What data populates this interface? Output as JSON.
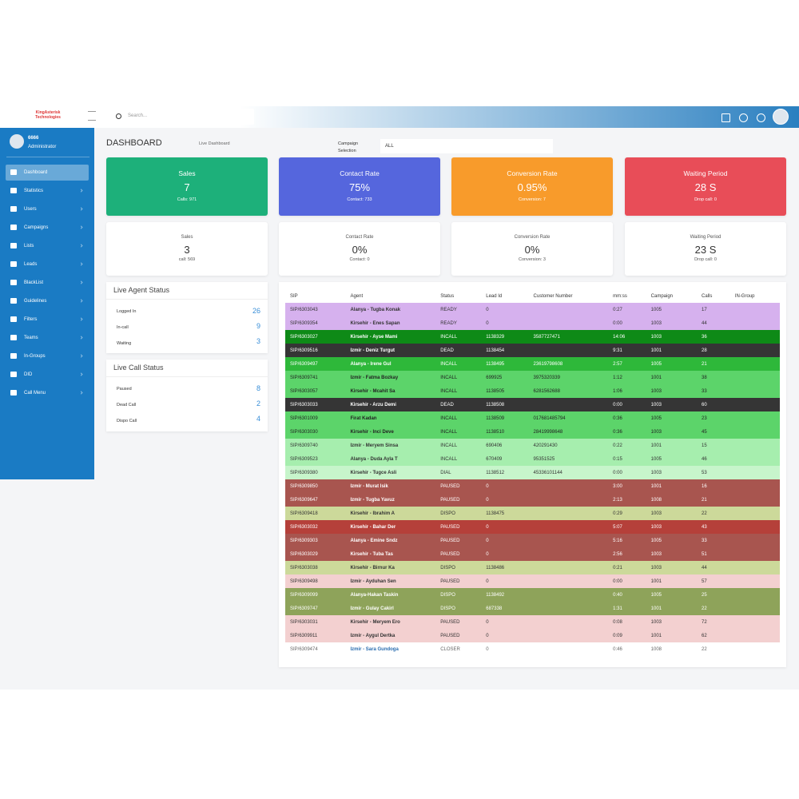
{
  "header": {
    "logo": "KingAsterisk Technologies",
    "search_placeholder": "Search..."
  },
  "user": {
    "id": "6666",
    "role": "Administrator"
  },
  "menu": [
    "Dashboard",
    "Statistics",
    "Users",
    "Campaigns",
    "Lists",
    "Leads",
    "BlackList",
    "Guidelines",
    "Filters",
    "Teams",
    "In-Groups",
    "DID",
    "Call Menu"
  ],
  "page": {
    "title": "DASHBOARD",
    "breadcrumb": "Live Dashboard",
    "campaign_label": "Campaign Selection",
    "campaign_value": "ALL"
  },
  "cards_top": [
    {
      "title": "Sales",
      "value": "7",
      "sub": "Calls: 971",
      "color": "#1db07a"
    },
    {
      "title": "Contact Rate",
      "value": "75%",
      "sub": "Contact: 733",
      "color": "#5566dd"
    },
    {
      "title": "Conversion Rate",
      "value": "0.95%",
      "sub": "Conversion: 7",
      "color": "#f89b2b"
    },
    {
      "title": "Waiting Period",
      "value": "28 S",
      "sub": "Drop call: 0",
      "color": "#e84d58"
    }
  ],
  "cards_bottom": [
    {
      "title": "Sales",
      "value": "3",
      "sub": "call: 569"
    },
    {
      "title": "Contact Rate",
      "value": "0%",
      "sub": "Contact: 0"
    },
    {
      "title": "Conversion Rate",
      "value": "0%",
      "sub": "Conversion: 3"
    },
    {
      "title": "Waiting Period",
      "value": "23 S",
      "sub": "Drop call: 0"
    }
  ],
  "agent_status": {
    "title": "Live Agent Status",
    "rows": [
      [
        "Logged In",
        "26"
      ],
      [
        "In-call",
        "9"
      ],
      [
        "Waiting",
        "3"
      ]
    ]
  },
  "call_status": {
    "title": "Live Call Status",
    "rows": [
      [
        "Paused",
        "8"
      ],
      [
        "Dead Call",
        "2"
      ],
      [
        "Dispo Call",
        "4"
      ]
    ]
  },
  "table": {
    "headers": [
      "SIP",
      "Agent",
      "Status",
      "Lead Id",
      "Customer Number",
      "mm:ss",
      "Campaign",
      "Calls",
      "IN-Group"
    ],
    "rows": [
      {
        "bg": "#d6b1ee",
        "fg": "#333",
        "cells": [
          "SIP/6303043",
          "Alanya - Tugba Konak",
          "READY",
          "0",
          null,
          "0:27",
          "1005",
          "17"
        ]
      },
      {
        "bg": "#d6b1ee",
        "fg": "#333",
        "cells": [
          "SIP/6309354",
          "Kirsehir - Enes Sapan",
          "READY",
          "0",
          null,
          "0:00",
          "1003",
          "44"
        ]
      },
      {
        "bg": "#0e8a17",
        "fg": "#fff",
        "cells": [
          "SIP/6303027",
          "Kirsehir - Ayse Mami",
          "INCALL",
          "1138329",
          "3587727471",
          "14:06",
          "1003",
          "36"
        ]
      },
      {
        "bg": "#353535",
        "fg": "#fff",
        "cells": [
          "SIP/6309516",
          "Izmir - Deniz Turgut",
          "DEAD",
          "1138454",
          null,
          "9:31",
          "1001",
          "28"
        ]
      },
      {
        "bg": "#2eb83a",
        "fg": "#fff",
        "cells": [
          "SIP/6309497",
          "Alanya - Irene Gul",
          "INCALL",
          "1138495",
          "23619798608",
          "2:57",
          "1005",
          "21"
        ]
      },
      {
        "bg": "#5cd46a",
        "fg": "#222",
        "cells": [
          "SIP/6309741",
          "Izmir - Fatma Bozkay",
          "INCALL",
          "699925",
          "3975320339",
          "1:12",
          "1001",
          "38"
        ]
      },
      {
        "bg": "#5cd46a",
        "fg": "#222",
        "cells": [
          "SIP/6303057",
          "Kirsehir - Mcahit Sa",
          "INCALL",
          "1138505",
          "6281562688",
          "1:06",
          "1003",
          "33"
        ]
      },
      {
        "bg": "#353535",
        "fg": "#fff",
        "cells": [
          "SIP/6303033",
          "Kirsehir - Arzu Demi",
          "DEAD",
          "1138508",
          null,
          "0:00",
          "1003",
          "60"
        ]
      },
      {
        "bg": "#5cd46a",
        "fg": "#222",
        "cells": [
          "SIP/6301009",
          "Firat Kadan",
          "INCALL",
          "1138509",
          "017681485794",
          "0:36",
          "1005",
          "23"
        ]
      },
      {
        "bg": "#5cd46a",
        "fg": "#222",
        "cells": [
          "SIP/6303030",
          "Kirsehir - Inci Deve",
          "INCALL",
          "1138510",
          "28419998648",
          "0:36",
          "1003",
          "45"
        ]
      },
      {
        "bg": "#a6eeae",
        "fg": "#333",
        "cells": [
          "SIP/6309740",
          "Izmir - Meryem Sinsa",
          "INCALL",
          "690406",
          "420291430",
          "0:22",
          "1001",
          "15"
        ]
      },
      {
        "bg": "#a6eeae",
        "fg": "#333",
        "cells": [
          "SIP/6309523",
          "Alanya - Duda Ayla T",
          "INCALL",
          "670409",
          "95351525",
          "0:15",
          "1005",
          "46"
        ]
      },
      {
        "bg": "#c7f5cb",
        "fg": "#333",
        "cells": [
          "SIP/6309380",
          "Kirsehir - Tugce Asli",
          "DIAL",
          "1138512",
          "45336101144",
          "0:00",
          "1003",
          "53"
        ]
      },
      {
        "bg": "#a8554f",
        "fg": "#fff",
        "cells": [
          "SIP/6309850",
          "Izmir - Murat Isik",
          "PAUSED",
          "0",
          null,
          "3:00",
          "1001",
          "16"
        ]
      },
      {
        "bg": "#a8554f",
        "fg": "#fff",
        "cells": [
          "SIP/6309647",
          "Izmir - Tugba Yavuz",
          "PAUSED",
          "0",
          null,
          "2:13",
          "1008",
          "21"
        ]
      },
      {
        "bg": "#ccd99a",
        "fg": "#333",
        "cells": [
          "SIP/6309418",
          "Kirsehir - Ibrahim A",
          "DISPO",
          "1138475",
          null,
          "0:29",
          "1003",
          "22"
        ]
      },
      {
        "bg": "#b5403a",
        "fg": "#fff",
        "cells": [
          "SIP/6303032",
          "Kirsehir - Bahar Der",
          "PAUSED",
          "0",
          null,
          "5:07",
          "1003",
          "43"
        ]
      },
      {
        "bg": "#a8554f",
        "fg": "#fff",
        "cells": [
          "SIP/6309303",
          "Alanya - Emine Sndz",
          "PAUSED",
          "0",
          null,
          "5:16",
          "1005",
          "33"
        ]
      },
      {
        "bg": "#a8554f",
        "fg": "#fff",
        "cells": [
          "SIP/6303029",
          "Kirsehir - Tuba Tas",
          "PAUSED",
          "0",
          null,
          "2:56",
          "1003",
          "51"
        ]
      },
      {
        "bg": "#ccd99a",
        "fg": "#333",
        "cells": [
          "SIP/6303038",
          "Kirsehir - Birnur Ka",
          "DISPO",
          "1138486",
          null,
          "0:21",
          "1003",
          "44"
        ]
      },
      {
        "bg": "#f3d0d0",
        "fg": "#333",
        "cells": [
          "SIP/6309498",
          "Izmir - Ayduhan Sen",
          "PAUSED",
          "0",
          null,
          "0:00",
          "1001",
          "57"
        ]
      },
      {
        "bg": "#8ea35a",
        "fg": "#fff",
        "cells": [
          "SIP/6309099",
          "Alanya-Hakan Taskin",
          "DISPO",
          "1138492",
          null,
          "0:40",
          "1005",
          "25"
        ]
      },
      {
        "bg": "#8ea35a",
        "fg": "#fff",
        "cells": [
          "SIP/6309747",
          "Izmir - Gulay Cakirl",
          "DISPO",
          "687338",
          null,
          "1:31",
          "1001",
          "22"
        ]
      },
      {
        "bg": "#f3d0d0",
        "fg": "#333",
        "cells": [
          "SIP/6303031",
          "Kirsehir - Meryem Ero",
          "PAUSED",
          "0",
          null,
          "0:08",
          "1003",
          "72"
        ]
      },
      {
        "bg": "#f3d0d0",
        "fg": "#333",
        "cells": [
          "SIP/6309911",
          "Izmir - Aygul Dertka",
          "PAUSED",
          "0",
          null,
          "0:09",
          "1001",
          "62"
        ]
      },
      {
        "bg": "#ffffff",
        "fg": "#666",
        "cells": [
          "SIP/6309474",
          "Izmir - Sara Gundoga",
          "CLOSER",
          "0",
          null,
          "0:46",
          "1008",
          "22"
        ]
      }
    ]
  }
}
